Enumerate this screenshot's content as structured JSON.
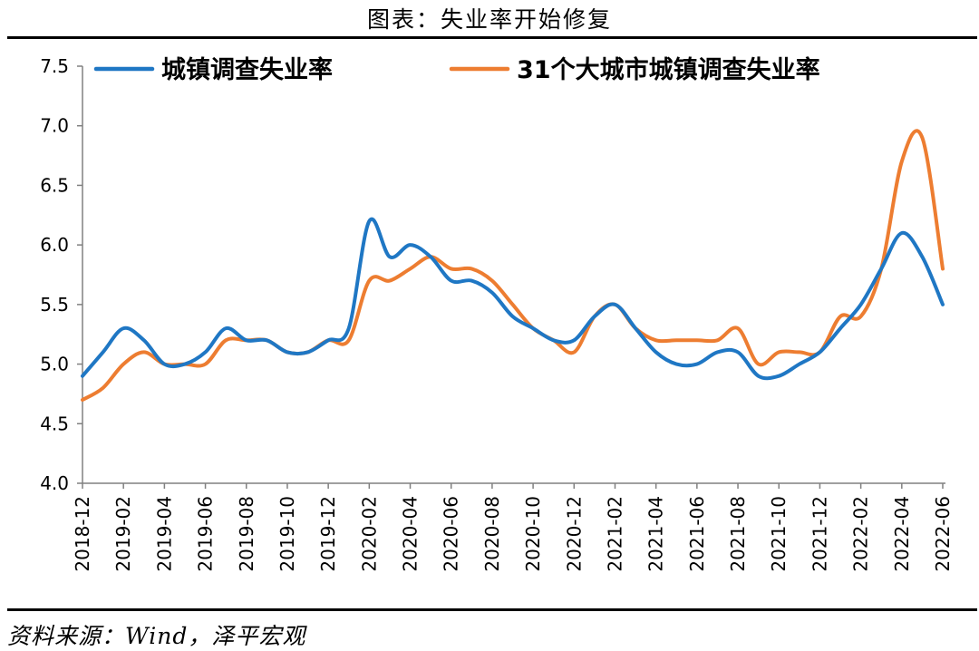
{
  "header": {
    "title": "图表：失业率开始修复"
  },
  "footer": {
    "source": "资料来源：Wind，泽平宏观"
  },
  "colors": {
    "series_0": "#1f77c4",
    "series_1": "#ed7d31",
    "axis": "#808080"
  },
  "chart_data": {
    "type": "line",
    "title": "图表：失业率开始修复",
    "xlabel": "",
    "ylabel": "",
    "ylim": [
      4.0,
      7.5
    ],
    "yticks": [
      "4.0",
      "4.5",
      "5.0",
      "5.5",
      "6.0",
      "6.5",
      "7.0",
      "7.5"
    ],
    "grid": false,
    "legend_position": "top",
    "x_tick_labels": [
      "2018-12",
      "2019-02",
      "2019-04",
      "2019-06",
      "2019-08",
      "2019-10",
      "2019-12",
      "2020-02",
      "2020-04",
      "2020-06",
      "2020-08",
      "2020-10",
      "2020-12",
      "2021-02",
      "2021-04",
      "2021-06",
      "2021-08",
      "2021-10",
      "2021-12",
      "2022-02",
      "2022-04",
      "2022-06"
    ],
    "x": [
      "2018-12",
      "2019-01",
      "2019-02",
      "2019-03",
      "2019-04",
      "2019-05",
      "2019-06",
      "2019-07",
      "2019-08",
      "2019-09",
      "2019-10",
      "2019-11",
      "2019-12",
      "2020-01",
      "2020-02",
      "2020-03",
      "2020-04",
      "2020-05",
      "2020-06",
      "2020-07",
      "2020-08",
      "2020-09",
      "2020-10",
      "2020-11",
      "2020-12",
      "2021-01",
      "2021-02",
      "2021-03",
      "2021-04",
      "2021-05",
      "2021-06",
      "2021-07",
      "2021-08",
      "2021-09",
      "2021-10",
      "2021-11",
      "2021-12",
      "2022-01",
      "2022-02",
      "2022-03",
      "2022-04",
      "2022-05",
      "2022-06"
    ],
    "series": [
      {
        "name": "城镇调查失业率",
        "values": [
          4.9,
          5.1,
          5.3,
          5.2,
          5.0,
          5.0,
          5.1,
          5.3,
          5.2,
          5.2,
          5.1,
          5.1,
          5.2,
          5.3,
          6.2,
          5.9,
          6.0,
          5.9,
          5.7,
          5.7,
          5.6,
          5.4,
          5.3,
          5.2,
          5.2,
          5.4,
          5.5,
          5.3,
          5.1,
          5.0,
          5.0,
          5.1,
          5.1,
          4.9,
          4.9,
          5.0,
          5.1,
          5.3,
          5.5,
          5.8,
          6.1,
          5.9,
          5.5
        ]
      },
      {
        "name": "31个大城市城镇调查失业率",
        "values": [
          4.7,
          4.8,
          5.0,
          5.1,
          5.0,
          5.0,
          5.0,
          5.2,
          5.2,
          5.2,
          5.1,
          5.1,
          5.2,
          5.2,
          5.7,
          5.7,
          5.8,
          5.9,
          5.8,
          5.8,
          5.7,
          5.5,
          5.3,
          5.2,
          5.1,
          5.4,
          5.5,
          5.3,
          5.2,
          5.2,
          5.2,
          5.2,
          5.3,
          5.0,
          5.1,
          5.1,
          5.1,
          5.4,
          5.4,
          5.8,
          6.7,
          6.9,
          5.8
        ]
      }
    ]
  }
}
